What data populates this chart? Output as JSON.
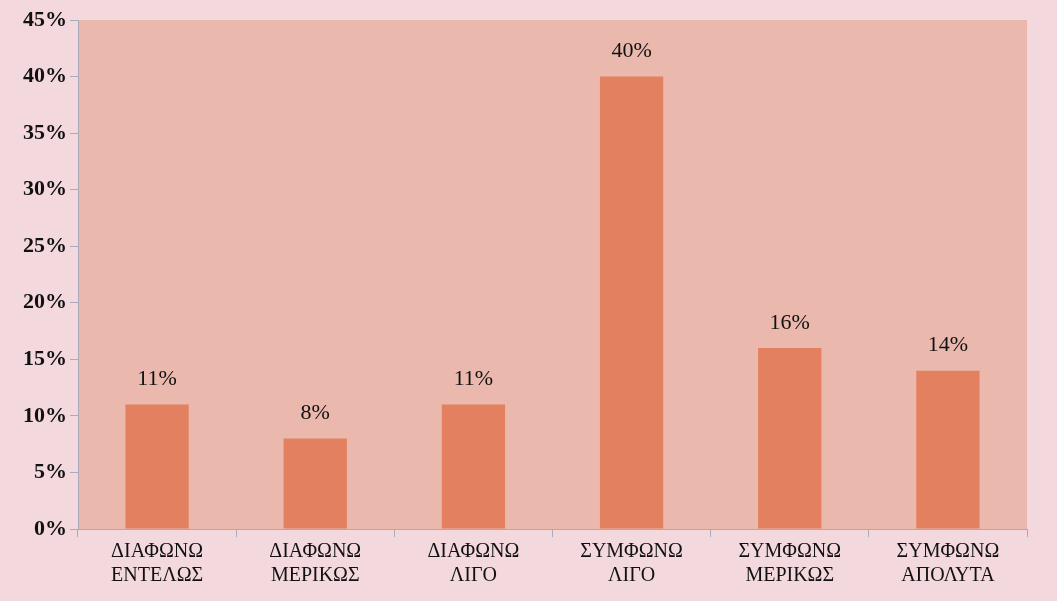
{
  "chart_data": {
    "type": "bar",
    "categories": [
      "ΔΙΑΦΩΝΩ ΕΝΤΕΛΩΣ",
      "ΔΙΑΦΩΝΩ ΜΕΡΙΚΩΣ",
      "ΔΙΑΦΩΝΩ ΛΙΓΟ",
      "ΣΥΜΦΩΝΩ ΛΙΓΟ",
      "ΣΥΜΦΩΝΩ ΜΕΡΙΚΩΣ",
      "ΣΥΜΦΩΝΩ ΑΠΟΛΥΤΑ"
    ],
    "values": [
      11,
      8,
      11,
      40,
      16,
      14
    ],
    "value_labels": [
      "11%",
      "8%",
      "11%",
      "40%",
      "16%",
      "14%"
    ],
    "color": "#e2805f",
    "ylim": [
      0,
      45
    ],
    "yticks": [
      {
        "value": 0,
        "label": "0%"
      },
      {
        "value": 5,
        "label": "5%"
      },
      {
        "value": 10,
        "label": "10%"
      },
      {
        "value": 15,
        "label": "15%"
      },
      {
        "value": 20,
        "label": "20%"
      },
      {
        "value": 25,
        "label": "25%"
      },
      {
        "value": 30,
        "label": "30%"
      },
      {
        "value": 35,
        "label": "35%"
      },
      {
        "value": 40,
        "label": "40%"
      },
      {
        "value": 45,
        "label": "45%"
      }
    ],
    "grid": false,
    "legend": false
  }
}
